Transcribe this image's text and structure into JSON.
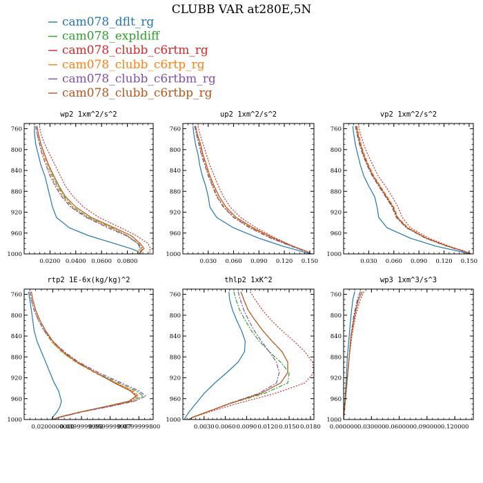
{
  "figure": {
    "title": "CLUBB VAR at280E,5N"
  },
  "legend": [
    {
      "name": "cam078_dflt_rg",
      "color": "#1f77b4",
      "dash": "solid"
    },
    {
      "name": "cam078_expldiff",
      "color": "#2ca02c",
      "dash": "dashdot"
    },
    {
      "name": "cam078_clubb_c6rtm_rg",
      "color": "#d62728",
      "dash": "dot"
    },
    {
      "name": "cam078_clubb_c6rtp_rg",
      "color": "#ff7f0e",
      "dash": "dash"
    },
    {
      "name": "cam078_clubb_c6rtbm_rg",
      "color": "#7f4fa8",
      "dash": "dashdot"
    },
    {
      "name": "cam078_clubb_c6rtbp_rg",
      "color": "#b5561b",
      "dash": "solid"
    }
  ],
  "chart_data": [
    {
      "type": "line",
      "title": "wp2  1xm^2/s^2",
      "xlim": [
        0,
        0.1
      ],
      "ylim": [
        1000,
        750
      ],
      "xticks": [
        0.02,
        0.04,
        0.06,
        0.08
      ],
      "xticklabels": [
        "0.0200",
        "0.0400",
        "0.0600",
        "0.0800"
      ],
      "yticks": [
        760,
        800,
        840,
        880,
        920,
        960,
        1000
      ],
      "y": [
        755,
        770,
        790,
        810,
        830,
        850,
        870,
        890,
        910,
        930,
        950,
        965,
        980,
        990,
        995,
        1000
      ],
      "series": [
        {
          "values": [
            0.008,
            0.008,
            0.009,
            0.011,
            0.013,
            0.016,
            0.018,
            0.02,
            0.022,
            0.025,
            0.035,
            0.05,
            0.07,
            0.083,
            0.088,
            0.09
          ]
        },
        {
          "values": [
            0.01,
            0.011,
            0.013,
            0.016,
            0.019,
            0.022,
            0.026,
            0.031,
            0.038,
            0.05,
            0.068,
            0.08,
            0.088,
            0.09,
            0.088,
            0.088
          ]
        },
        {
          "values": [
            0.012,
            0.013,
            0.016,
            0.02,
            0.024,
            0.028,
            0.032,
            0.038,
            0.046,
            0.058,
            0.075,
            0.087,
            0.096,
            0.098,
            0.097,
            0.098
          ]
        },
        {
          "values": [
            0.009,
            0.01,
            0.012,
            0.015,
            0.018,
            0.021,
            0.025,
            0.03,
            0.037,
            0.049,
            0.067,
            0.08,
            0.089,
            0.091,
            0.089,
            0.089
          ]
        },
        {
          "values": [
            0.009,
            0.01,
            0.012,
            0.014,
            0.017,
            0.02,
            0.024,
            0.029,
            0.036,
            0.048,
            0.065,
            0.079,
            0.088,
            0.092,
            0.091,
            0.09
          ]
        },
        {
          "values": [
            0.01,
            0.011,
            0.013,
            0.016,
            0.019,
            0.023,
            0.027,
            0.032,
            0.04,
            0.052,
            0.07,
            0.083,
            0.09,
            0.093,
            0.09,
            0.09
          ]
        }
      ]
    },
    {
      "type": "line",
      "title": "up2  1xm^2/s^2",
      "xlim": [
        0,
        0.155
      ],
      "ylim": [
        1000,
        750
      ],
      "xticks": [
        0.03,
        0.06,
        0.09,
        0.12,
        0.15
      ],
      "xticklabels": [
        "0.030",
        "0.060",
        "0.090",
        "0.120",
        "0.150"
      ],
      "yticks": [
        760,
        800,
        840,
        880,
        920,
        960,
        1000
      ],
      "y": [
        755,
        770,
        790,
        810,
        830,
        850,
        870,
        890,
        910,
        930,
        950,
        970,
        985,
        995,
        1000
      ],
      "series": [
        {
          "values": [
            0.012,
            0.013,
            0.015,
            0.018,
            0.02,
            0.023,
            0.027,
            0.03,
            0.032,
            0.04,
            0.06,
            0.09,
            0.118,
            0.14,
            0.15
          ]
        },
        {
          "values": [
            0.014,
            0.016,
            0.019,
            0.022,
            0.026,
            0.03,
            0.035,
            0.04,
            0.048,
            0.06,
            0.08,
            0.105,
            0.128,
            0.145,
            0.152
          ]
        },
        {
          "values": [
            0.018,
            0.02,
            0.024,
            0.028,
            0.032,
            0.037,
            0.042,
            0.048,
            0.056,
            0.068,
            0.087,
            0.11,
            0.13,
            0.146,
            0.153
          ]
        },
        {
          "values": [
            0.015,
            0.017,
            0.02,
            0.023,
            0.027,
            0.031,
            0.036,
            0.041,
            0.049,
            0.061,
            0.081,
            0.106,
            0.129,
            0.146,
            0.152
          ]
        },
        {
          "values": [
            0.014,
            0.016,
            0.019,
            0.022,
            0.026,
            0.03,
            0.035,
            0.04,
            0.048,
            0.06,
            0.079,
            0.104,
            0.128,
            0.145,
            0.152
          ]
        },
        {
          "values": [
            0.015,
            0.017,
            0.021,
            0.024,
            0.028,
            0.032,
            0.037,
            0.043,
            0.051,
            0.063,
            0.083,
            0.108,
            0.13,
            0.146,
            0.152
          ]
        }
      ]
    },
    {
      "type": "line",
      "title": "vp2  1xm^2/s^2",
      "xlim": [
        0,
        0.155
      ],
      "ylim": [
        1000,
        750
      ],
      "xticks": [
        0.03,
        0.06,
        0.09,
        0.12,
        0.15
      ],
      "xticklabels": [
        "0.030",
        "0.060",
        "0.090",
        "0.120",
        "0.150"
      ],
      "yticks": [
        760,
        800,
        840,
        880,
        920,
        960,
        1000
      ],
      "y": [
        755,
        770,
        790,
        810,
        830,
        850,
        870,
        890,
        910,
        930,
        950,
        970,
        985,
        995,
        1000
      ],
      "series": [
        {
          "values": [
            0.011,
            0.012,
            0.014,
            0.017,
            0.02,
            0.024,
            0.03,
            0.037,
            0.04,
            0.042,
            0.052,
            0.08,
            0.11,
            0.138,
            0.15
          ]
        },
        {
          "values": [
            0.014,
            0.016,
            0.019,
            0.023,
            0.028,
            0.034,
            0.042,
            0.05,
            0.058,
            0.063,
            0.075,
            0.098,
            0.123,
            0.143,
            0.152
          ]
        },
        {
          "values": [
            0.018,
            0.02,
            0.024,
            0.029,
            0.035,
            0.041,
            0.05,
            0.058,
            0.065,
            0.07,
            0.08,
            0.102,
            0.126,
            0.145,
            0.153
          ]
        },
        {
          "values": [
            0.016,
            0.018,
            0.021,
            0.025,
            0.03,
            0.036,
            0.044,
            0.052,
            0.06,
            0.065,
            0.077,
            0.099,
            0.124,
            0.144,
            0.152
          ]
        },
        {
          "values": [
            0.014,
            0.016,
            0.019,
            0.023,
            0.028,
            0.034,
            0.042,
            0.05,
            0.058,
            0.063,
            0.075,
            0.098,
            0.123,
            0.143,
            0.152
          ]
        },
        {
          "values": [
            0.015,
            0.017,
            0.02,
            0.024,
            0.029,
            0.035,
            0.043,
            0.051,
            0.059,
            0.064,
            0.076,
            0.099,
            0.124,
            0.144,
            0.152
          ]
        }
      ]
    },
    {
      "type": "line",
      "title": "rtp2  1E-6x(kg/kg)^2",
      "xlim": [
        0,
        0.09
      ],
      "ylim": [
        1000,
        750
      ],
      "xticks": [
        0.02,
        0.04,
        0.06,
        0.08
      ],
      "xticklabels": [
        "0.0200000000",
        "0.0399999998",
        "0.0599999987",
        "0.0799999800"
      ],
      "yticks": [
        760,
        800,
        840,
        880,
        920,
        960,
        1000
      ],
      "y": [
        755,
        770,
        790,
        810,
        830,
        850,
        870,
        890,
        910,
        930,
        945,
        955,
        965,
        975,
        985,
        995,
        1000
      ],
      "series": [
        {
          "values": [
            0.003,
            0.004,
            0.005,
            0.006,
            0.007,
            0.009,
            0.012,
            0.015,
            0.018,
            0.021,
            0.024,
            0.025,
            0.026,
            0.025,
            0.023,
            0.02,
            0.019
          ]
        },
        {
          "values": [
            0.004,
            0.005,
            0.007,
            0.01,
            0.014,
            0.019,
            0.026,
            0.036,
            0.05,
            0.066,
            0.078,
            0.083,
            0.075,
            0.058,
            0.04,
            0.025,
            0.02
          ]
        },
        {
          "values": [
            0.005,
            0.006,
            0.008,
            0.011,
            0.015,
            0.02,
            0.027,
            0.037,
            0.05,
            0.064,
            0.075,
            0.079,
            0.074,
            0.058,
            0.04,
            0.025,
            0.02
          ]
        },
        {
          "values": [
            0.004,
            0.005,
            0.007,
            0.01,
            0.014,
            0.019,
            0.026,
            0.036,
            0.049,
            0.064,
            0.076,
            0.08,
            0.076,
            0.059,
            0.041,
            0.026,
            0.02
          ]
        },
        {
          "values": [
            0.004,
            0.005,
            0.007,
            0.01,
            0.014,
            0.02,
            0.028,
            0.038,
            0.052,
            0.068,
            0.08,
            0.085,
            0.077,
            0.06,
            0.041,
            0.026,
            0.02
          ]
        },
        {
          "values": [
            0.005,
            0.006,
            0.008,
            0.011,
            0.015,
            0.02,
            0.027,
            0.037,
            0.05,
            0.063,
            0.074,
            0.078,
            0.073,
            0.057,
            0.04,
            0.025,
            0.02
          ]
        }
      ]
    },
    {
      "type": "line",
      "title": "thlp2  1xK^2",
      "xlim": [
        0,
        0.0185
      ],
      "ylim": [
        1000,
        750
      ],
      "xticks": [
        0.003,
        0.006,
        0.009,
        0.012,
        0.015,
        0.018
      ],
      "xticklabels": [
        "0.0030",
        "0.0060",
        "0.0090",
        "0.0120",
        "0.0150",
        "0.0180"
      ],
      "yticks": [
        760,
        800,
        840,
        880,
        920,
        960,
        1000
      ],
      "y": [
        755,
        770,
        790,
        810,
        830,
        850,
        870,
        890,
        910,
        930,
        950,
        970,
        985,
        995,
        1000
      ],
      "series": [
        {
          "values": [
            0.0065,
            0.0066,
            0.007,
            0.0076,
            0.0083,
            0.0088,
            0.0087,
            0.0078,
            0.0062,
            0.0045,
            0.003,
            0.0018,
            0.0009,
            0.0004,
            0.0002
          ]
        },
        {
          "values": [
            0.0072,
            0.0075,
            0.008,
            0.0088,
            0.0097,
            0.0108,
            0.0122,
            0.0138,
            0.015,
            0.0148,
            0.0115,
            0.0065,
            0.0035,
            0.0015,
            0.0008
          ]
        },
        {
          "values": [
            0.0095,
            0.0102,
            0.0112,
            0.0125,
            0.014,
            0.0157,
            0.0172,
            0.0183,
            0.0185,
            0.0172,
            0.013,
            0.0075,
            0.0038,
            0.0016,
            0.0008
          ]
        },
        {
          "values": [
            0.0082,
            0.0086,
            0.0092,
            0.0102,
            0.0113,
            0.0126,
            0.014,
            0.0148,
            0.0148,
            0.0138,
            0.011,
            0.0065,
            0.0035,
            0.0015,
            0.0008
          ]
        },
        {
          "values": [
            0.0078,
            0.0081,
            0.0086,
            0.0093,
            0.0101,
            0.0111,
            0.0122,
            0.0132,
            0.0136,
            0.0132,
            0.0107,
            0.0064,
            0.0035,
            0.0015,
            0.0008
          ]
        },
        {
          "values": [
            0.0082,
            0.0086,
            0.0092,
            0.0102,
            0.0113,
            0.0126,
            0.014,
            0.0148,
            0.0148,
            0.0138,
            0.011,
            0.0065,
            0.0035,
            0.0015,
            0.0008
          ]
        }
      ]
    },
    {
      "type": "line",
      "title": "wp3  1xm^3/s^3",
      "xlim": [
        0,
        0.14
      ],
      "ylim": [
        1000,
        750
      ],
      "xticks": [
        0,
        0.03,
        0.06,
        0.09,
        0.12
      ],
      "xticklabels": [
        "0.000000",
        "0.030000",
        "0.060000",
        "0.090000",
        "0.120000"
      ],
      "yticks": [
        760,
        800,
        840,
        880,
        920,
        960,
        1000
      ],
      "y": [
        755,
        770,
        800,
        840,
        880,
        920,
        960,
        985,
        1000
      ],
      "series": [
        {
          "values": [
            0.012,
            0.01,
            0.008,
            0.006,
            0.004,
            0.003,
            0.0015,
            0.0005,
            0
          ]
        },
        {
          "values": [
            0.018,
            0.015,
            0.011,
            0.008,
            0.006,
            0.004,
            0.002,
            0.0007,
            0
          ]
        },
        {
          "values": [
            0.022,
            0.018,
            0.013,
            0.009,
            0.006,
            0.004,
            0.002,
            0.0007,
            0
          ]
        },
        {
          "values": [
            0.02,
            0.016,
            0.012,
            0.008,
            0.006,
            0.004,
            0.002,
            0.0007,
            0
          ]
        },
        {
          "values": [
            0.018,
            0.015,
            0.011,
            0.008,
            0.006,
            0.004,
            0.002,
            0.0007,
            0
          ]
        },
        {
          "values": [
            0.02,
            0.016,
            0.012,
            0.008,
            0.006,
            0.004,
            0.002,
            0.0007,
            0
          ]
        }
      ]
    }
  ]
}
